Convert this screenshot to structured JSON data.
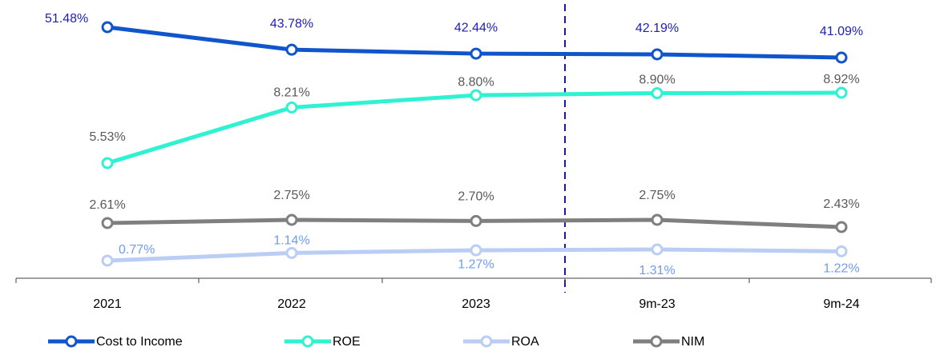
{
  "chart_data": {
    "type": "line",
    "categories": [
      "2021",
      "2022",
      "2023",
      "9m-23",
      "9m-24"
    ],
    "series": [
      {
        "name": "Cost to Income",
        "color": "#1155cc",
        "label_color": "#1f1fb4",
        "values": [
          51.48,
          43.78,
          42.44,
          42.19,
          41.09
        ],
        "value_labels": [
          "51.48%",
          "43.78%",
          "42.44%",
          "42.19%",
          "41.09%"
        ]
      },
      {
        "name": "ROE",
        "color": "#2ef2d2",
        "label_color": "#595959",
        "values": [
          5.53,
          8.21,
          8.8,
          8.9,
          8.92
        ],
        "value_labels": [
          "5.53%",
          "8.21%",
          "8.80%",
          "8.90%",
          "8.92%"
        ]
      },
      {
        "name": "ROA",
        "color": "#b9cdf5",
        "label_color": "#6f9cf0",
        "values": [
          0.77,
          1.14,
          1.27,
          1.31,
          1.22
        ],
        "value_labels": [
          "0.77%",
          "1.14%",
          "1.27%",
          "1.31%",
          "1.22%"
        ]
      },
      {
        "name": "NIM",
        "color": "#7f7f7f",
        "label_color": "#595959",
        "values": [
          2.61,
          2.75,
          2.7,
          2.75,
          2.43
        ],
        "value_labels": [
          "2.61%",
          "2.75%",
          "2.70%",
          "2.75%",
          "2.43%"
        ]
      }
    ]
  }
}
